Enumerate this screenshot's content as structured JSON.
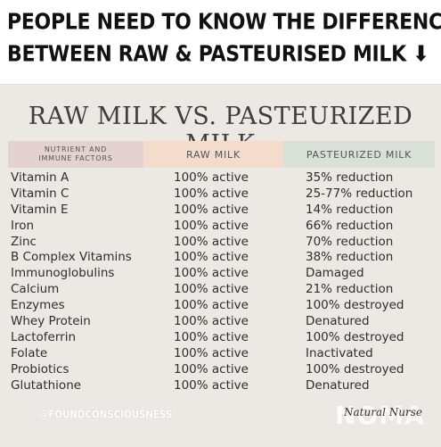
{
  "headline": {
    "line1": "PEOPLE NEED TO KNOW THE DIFFERENCE",
    "line2": "BETWEEN RAW & PASTEURISED MILK ⬇"
  },
  "card": {
    "title": "RAW MILK VS. PASTEURIZED MILK",
    "headers": {
      "nutrient_line1": "NUTRIENT AND",
      "nutrient_line2": "IMMUNE FACTORS",
      "raw": "RAW MILK",
      "pasteurized": "PASTEURIZED MILK"
    },
    "rows": [
      {
        "nutrient": "Vitamin A",
        "raw": "100% active",
        "pasteurized": "35% reduction"
      },
      {
        "nutrient": "Vitamin C",
        "raw": "100% active",
        "pasteurized": "25-77% reduction"
      },
      {
        "nutrient": "Vitamin E",
        "raw": "100% active",
        "pasteurized": "14% reduction"
      },
      {
        "nutrient": "Iron",
        "raw": "100% active",
        "pasteurized": "66% reduction"
      },
      {
        "nutrient": "Zinc",
        "raw": "100% active",
        "pasteurized": "70% reduction"
      },
      {
        "nutrient": "B Complex Vitamins",
        "raw": "100% active",
        "pasteurized": "38% reduction"
      },
      {
        "nutrient": "Immunoglobulins",
        "raw": "100% active",
        "pasteurized": "Damaged"
      },
      {
        "nutrient": "Calcium",
        "raw": "100% active",
        "pasteurized": "21% reduction"
      },
      {
        "nutrient": "Enzymes",
        "raw": "100% active",
        "pasteurized": "100% destroyed"
      },
      {
        "nutrient": "Whey Protein",
        "raw": "100% active",
        "pasteurized": "Denatured"
      },
      {
        "nutrient": "Lactoferrin",
        "raw": "100% active",
        "pasteurized": "100% destroyed"
      },
      {
        "nutrient": "Folate",
        "raw": "100% active",
        "pasteurized": "Inactivated"
      },
      {
        "nutrient": "Probiotics",
        "raw": "100% active",
        "pasteurized": "100% destroyed"
      },
      {
        "nutrient": "Glutathione",
        "raw": "100% active",
        "pasteurized": "Denatured"
      }
    ],
    "footer_handle": "@FOUNDCONSCIOUSNESS",
    "signature": "Natural Nurse",
    "watermark": "NOMA"
  }
}
